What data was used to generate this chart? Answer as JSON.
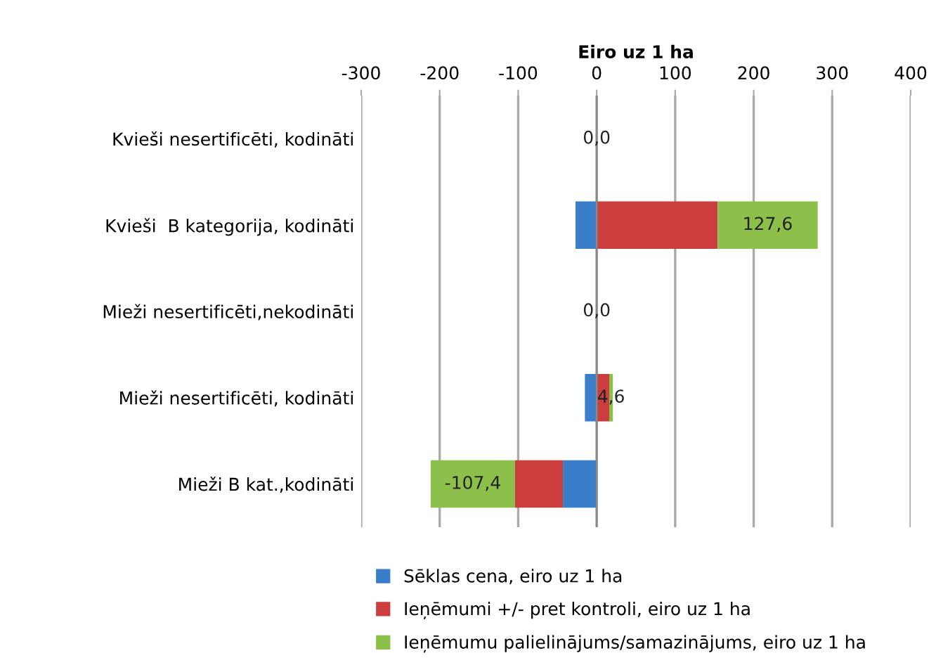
{
  "chart_data": {
    "type": "bar",
    "orientation": "horizontal",
    "stacked": true,
    "xlabel": "Eiro uz 1 ha",
    "categories": [
      "Kvieši nesertificēti, kodināti",
      "Kvieši  B kategorija, kodināti",
      "Mieži nesertificēti,nekodināti",
      "Mieži nesertificēti, kodināti",
      "Mieži B kat.,kodināti"
    ],
    "series": [
      {
        "name": "Sēklas cena, eiro uz 1 ha",
        "color": "#3a7dc9",
        "values": [
          0,
          -27,
          0,
          -15,
          -43
        ]
      },
      {
        "name": "Ieņēmumi +/- pret kontroli, eiro uz 1 ha",
        "color": "#cc3d3d",
        "values": [
          0,
          154,
          0,
          16,
          -61
        ]
      },
      {
        "name": "Ieņēmumu palielinājums/samazinājums, eiro uz 1 ha",
        "color": "#8cc04a",
        "values": [
          0,
          127.6,
          0,
          4.6,
          -107.4
        ],
        "value_labels": [
          "0,0",
          "127,6",
          "0,0",
          "4,6",
          "-107,4"
        ]
      }
    ],
    "xlim": [
      -300,
      400
    ],
    "xticks": [
      -300,
      -200,
      -100,
      0,
      100,
      200,
      300,
      400
    ],
    "grid": "x",
    "legend": "bottom"
  }
}
